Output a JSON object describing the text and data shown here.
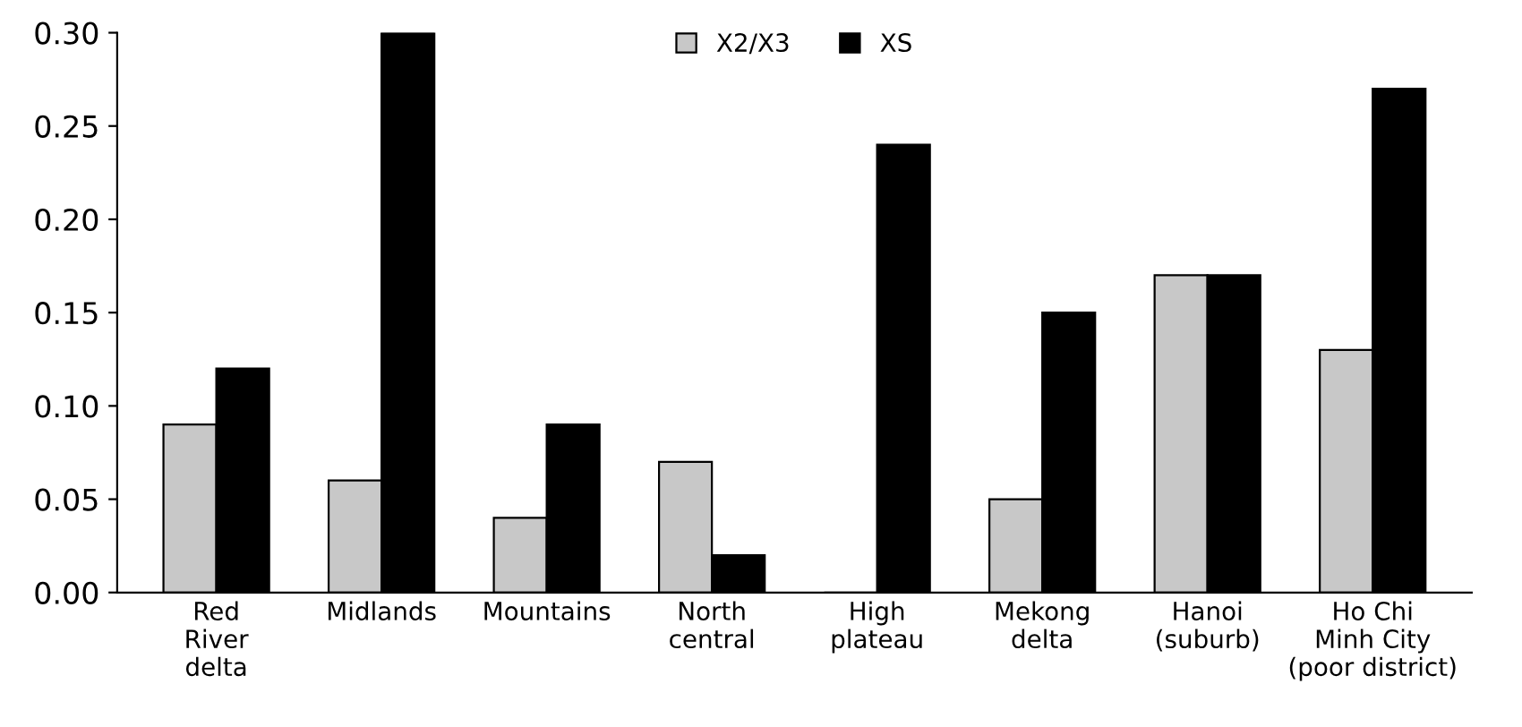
{
  "chart_data": {
    "type": "bar",
    "categories": [
      "Red\nRiver\ndelta",
      "Midlands",
      "Mountains",
      "North\ncentral",
      "High\nplateau",
      "Mekong\ndelta",
      "Hanoi\n(suburb)",
      "Ho Chi\nMinh City\n(poor district)"
    ],
    "series": [
      {
        "name": "X2/X3",
        "color": "#c8c8c8",
        "values": [
          0.09,
          0.06,
          0.04,
          0.07,
          0.0,
          0.05,
          0.17,
          0.13
        ]
      },
      {
        "name": "XS",
        "color": "#000000",
        "values": [
          0.12,
          0.3,
          0.09,
          0.02,
          0.24,
          0.15,
          0.17,
          0.27
        ]
      }
    ],
    "ylim": [
      0,
      0.3
    ],
    "yticks": [
      {
        "value": 0,
        "label": "0.00"
      },
      {
        "value": 0.05,
        "label": "0.05"
      },
      {
        "value": 0.1,
        "label": "0.10"
      },
      {
        "value": 0.15,
        "label": "0.15"
      },
      {
        "value": 0.2,
        "label": "0.20"
      },
      {
        "value": 0.25,
        "label": "0.25"
      },
      {
        "value": 0.3,
        "label": "0.30"
      }
    ],
    "grid": false,
    "legend": "top"
  }
}
